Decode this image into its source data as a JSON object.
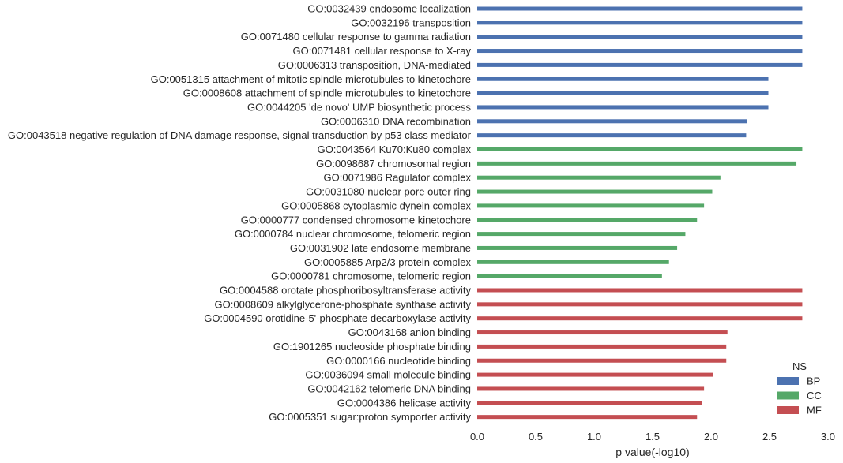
{
  "chart_data": {
    "type": "bar",
    "orientation": "horizontal",
    "xlabel": "p value(-log10)",
    "ylabel": "",
    "xlim": [
      0.0,
      3.0
    ],
    "xticks": [
      "0.0",
      "0.5",
      "1.0",
      "1.5",
      "2.0",
      "2.5",
      "3.0"
    ],
    "grid": false,
    "legend": {
      "title": "NS",
      "placement": "bottom-right",
      "entries": [
        {
          "name": "BP",
          "color": "#4c72b0"
        },
        {
          "name": "CC",
          "color": "#55a868"
        },
        {
          "name": "MF",
          "color": "#c44e52"
        }
      ]
    },
    "categories": [
      "GO:0032439 endosome localization",
      "GO:0032196 transposition",
      "GO:0071480 cellular response to gamma radiation",
      "GO:0071481 cellular response to X-ray",
      "GO:0006313 transposition, DNA-mediated",
      "GO:0051315 attachment of mitotic spindle microtubules to kinetochore",
      "GO:0008608 attachment of spindle microtubules to kinetochore",
      "GO:0044205 'de novo' UMP biosynthetic process",
      "GO:0006310 DNA recombination",
      "GO:0043518 negative regulation of DNA damage response, signal transduction by p53 class mediator",
      "GO:0043564 Ku70:Ku80 complex",
      "GO:0098687 chromosomal region",
      "GO:0071986 Ragulator complex",
      "GO:0031080 nuclear pore outer ring",
      "GO:0005868 cytoplasmic dynein complex",
      "GO:0000777 condensed chromosome kinetochore",
      "GO:0000784 nuclear chromosome, telomeric region",
      "GO:0031902 late endosome membrane",
      "GO:0005885 Arp2/3 protein complex",
      "GO:0000781 chromosome, telomeric region",
      "GO:0004588 orotate phosphoribosyltransferase activity",
      "GO:0008609 alkylglycerone-phosphate synthase activity",
      "GO:0004590 orotidine-5'-phosphate decarboxylase activity",
      "GO:0043168 anion binding",
      "GO:1901265 nucleoside phosphate binding",
      "GO:0000166 nucleotide binding",
      "GO:0036094 small molecule binding",
      "GO:0042162 telomeric DNA binding",
      "GO:0004386 helicase activity",
      "GO:0005351 sugar:proton symporter activity"
    ],
    "ns": [
      "BP",
      "BP",
      "BP",
      "BP",
      "BP",
      "BP",
      "BP",
      "BP",
      "BP",
      "BP",
      "CC",
      "CC",
      "CC",
      "CC",
      "CC",
      "CC",
      "CC",
      "CC",
      "CC",
      "CC",
      "MF",
      "MF",
      "MF",
      "MF",
      "MF",
      "MF",
      "MF",
      "MF",
      "MF",
      "MF"
    ],
    "values": [
      2.78,
      2.78,
      2.78,
      2.78,
      2.78,
      2.49,
      2.49,
      2.49,
      2.31,
      2.3,
      2.78,
      2.73,
      2.08,
      2.01,
      1.94,
      1.88,
      1.78,
      1.71,
      1.64,
      1.58,
      2.78,
      2.78,
      2.78,
      2.14,
      2.13,
      2.13,
      2.02,
      1.94,
      1.92,
      1.88
    ]
  }
}
